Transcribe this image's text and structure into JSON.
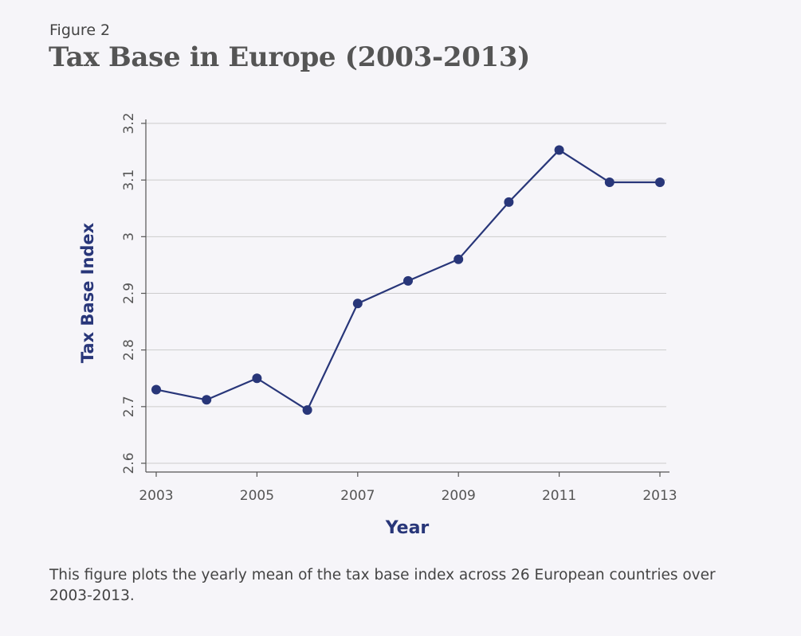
{
  "figure": {
    "label": "Figure 2",
    "title": "Tax Base in Europe (2003-2013)",
    "caption": "This figure plots the yearly mean of the tax base index across 26 European countries over 2003-2013."
  },
  "chart_data": {
    "type": "line",
    "title": "Tax Base in Europe (2003-2013)",
    "xlabel": "Year",
    "ylabel": "Tax Base Index",
    "x": [
      2003,
      2004,
      2005,
      2006,
      2007,
      2008,
      2009,
      2010,
      2011,
      2012,
      2013
    ],
    "y": [
      2.73,
      2.712,
      2.75,
      2.694,
      2.882,
      2.922,
      2.96,
      3.061,
      3.153,
      3.096,
      3.096
    ],
    "xticks": [
      "2003",
      "2005",
      "2007",
      "2009",
      "2011",
      "2013"
    ],
    "yticks": [
      "2.6",
      "2.7",
      "2.8",
      "2.9",
      "3",
      "3.1",
      "3.2"
    ],
    "xlim": [
      2003,
      2013
    ],
    "ylim": [
      2.6,
      3.2
    ],
    "grid": true,
    "colors": {
      "series": "#283679",
      "axis_label": "#283679",
      "grid": "#cccccc",
      "axis": "#555555",
      "tick_text": "#555555"
    }
  }
}
